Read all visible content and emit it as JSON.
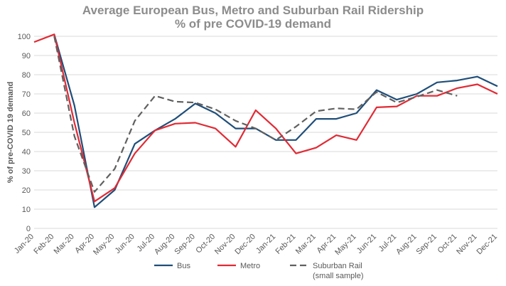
{
  "chart_data": {
    "type": "line",
    "title": "Average European Bus, Metro and Suburban Rail Ridership",
    "subtitle": "% of pre COVID-19 demand",
    "xlabel": "",
    "ylabel": "% of pre-COVID 19 demand",
    "ylim": [
      0,
      100
    ],
    "yticks": [
      0,
      10,
      20,
      30,
      40,
      50,
      60,
      70,
      80,
      90,
      100
    ],
    "grid": true,
    "legend_position": "bottom",
    "categories": [
      "Jan-20",
      "Feb-20",
      "Mar-20",
      "Apr-20",
      "May-20",
      "Jun-20",
      "Jul-20",
      "Aug-20",
      "Sep-20",
      "Oct-20",
      "Nov-20",
      "Dec-20",
      "Jan-21",
      "Feb-21",
      "Mar-21",
      "Apr-21",
      "May-21",
      "Jun-21",
      "Jul-21",
      "Aug-21",
      "Sep-21",
      "Oct-21",
      "Nov-21",
      "Dec-21"
    ],
    "series": [
      {
        "name": "Bus",
        "color": "#1f4e79",
        "dash": "solid",
        "values": [
          null,
          101,
          64,
          11,
          20,
          44,
          51,
          57,
          65,
          60,
          52,
          52,
          46,
          46,
          57,
          57,
          60,
          72,
          67,
          70,
          76,
          77,
          79,
          74
        ]
      },
      {
        "name": "Metro",
        "color": "#e02b35",
        "dash": "solid",
        "values": [
          97,
          101,
          55,
          14,
          21,
          39,
          51,
          54.5,
          55,
          52,
          42.5,
          61.5,
          52,
          39,
          42,
          48.5,
          46,
          63,
          63.5,
          69,
          69,
          73,
          75,
          70
        ]
      },
      {
        "name": "Suburban Rail",
        "name_line2": "(small sample)",
        "color": "#606060",
        "dash": "dashed",
        "values": [
          null,
          100,
          48,
          19,
          31,
          56,
          69,
          66,
          65.5,
          62,
          56,
          52,
          46,
          53,
          61,
          62.5,
          62,
          71,
          65.5,
          68.5,
          72,
          69,
          null,
          null
        ]
      }
    ]
  }
}
